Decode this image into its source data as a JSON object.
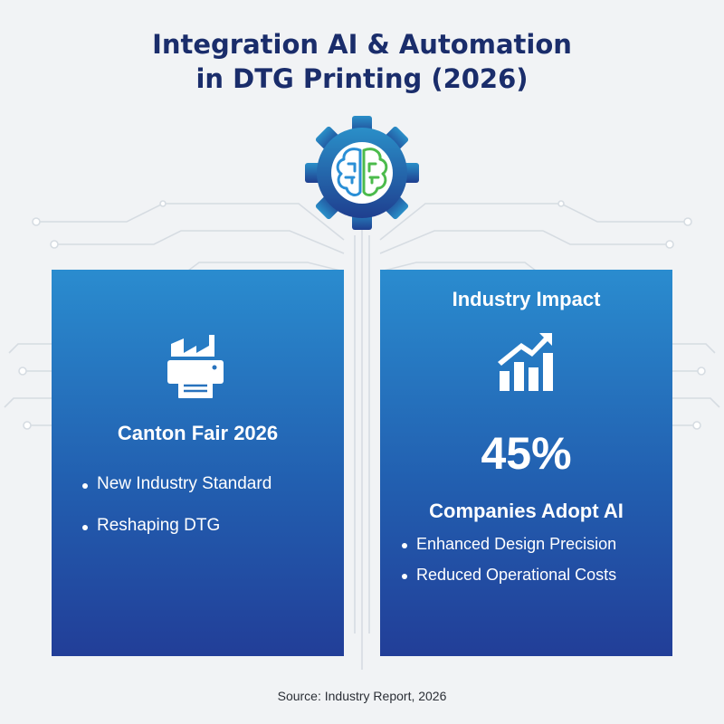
{
  "title": {
    "line1": "Integration AI & Automation",
    "line2": "in DTG Printing (2026)"
  },
  "colors": {
    "title": "#1a2d6b",
    "card_top": "#2a8ccf",
    "card_bottom": "#223e98",
    "gear_top": "#2a8fc8",
    "gear_bottom": "#1f3f8f",
    "brain_left": "#2a8fd6",
    "brain_right": "#4cbb4c"
  },
  "icons": {
    "hero": "gear-brain-icon",
    "left_card": "factory-printer-icon",
    "right_card": "growth-chart-icon"
  },
  "left_card": {
    "heading": "Canton Fair 2026",
    "bullets": [
      "New Industry Standard",
      "Reshaping DTG"
    ]
  },
  "right_card": {
    "heading": "Industry Impact",
    "stat": "45%",
    "subheading": "Companies Adopt AI",
    "bullets": [
      "Enhanced Design Precision",
      "Reduced Operational Costs"
    ]
  },
  "source": "Source: Industry Report, 2026"
}
